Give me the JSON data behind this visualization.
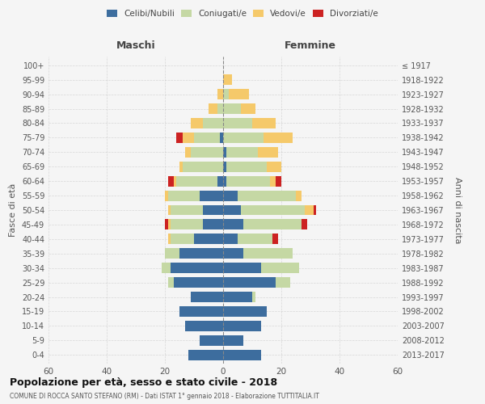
{
  "age_groups": [
    "0-4",
    "5-9",
    "10-14",
    "15-19",
    "20-24",
    "25-29",
    "30-34",
    "35-39",
    "40-44",
    "45-49",
    "50-54",
    "55-59",
    "60-64",
    "65-69",
    "70-74",
    "75-79",
    "80-84",
    "85-89",
    "90-94",
    "95-99",
    "100+"
  ],
  "birth_years": [
    "2013-2017",
    "2008-2012",
    "2003-2007",
    "1998-2002",
    "1993-1997",
    "1988-1992",
    "1983-1987",
    "1978-1982",
    "1973-1977",
    "1968-1972",
    "1963-1967",
    "1958-1962",
    "1953-1957",
    "1948-1952",
    "1943-1947",
    "1938-1942",
    "1933-1937",
    "1928-1932",
    "1923-1927",
    "1918-1922",
    "≤ 1917"
  ],
  "maschi": {
    "celibi": [
      12,
      8,
      13,
      15,
      11,
      17,
      18,
      15,
      10,
      7,
      7,
      8,
      2,
      0,
      0,
      1,
      0,
      0,
      0,
      0,
      0
    ],
    "coniugati": [
      0,
      0,
      0,
      0,
      0,
      2,
      3,
      5,
      8,
      11,
      11,
      11,
      14,
      14,
      11,
      9,
      7,
      2,
      0,
      0,
      0
    ],
    "vedovi": [
      0,
      0,
      0,
      0,
      0,
      0,
      0,
      0,
      1,
      1,
      1,
      1,
      1,
      1,
      2,
      4,
      4,
      3,
      2,
      0,
      0
    ],
    "divorziati": [
      0,
      0,
      0,
      0,
      0,
      0,
      0,
      0,
      0,
      1,
      0,
      0,
      2,
      0,
      0,
      2,
      0,
      0,
      0,
      0,
      0
    ]
  },
  "femmine": {
    "nubili": [
      13,
      7,
      13,
      15,
      10,
      18,
      13,
      7,
      5,
      7,
      6,
      5,
      1,
      1,
      1,
      0,
      0,
      0,
      0,
      0,
      0
    ],
    "coniugate": [
      0,
      0,
      0,
      0,
      1,
      5,
      13,
      17,
      12,
      20,
      22,
      20,
      15,
      14,
      11,
      14,
      10,
      6,
      2,
      0,
      0
    ],
    "vedove": [
      0,
      0,
      0,
      0,
      0,
      0,
      0,
      0,
      0,
      0,
      3,
      2,
      2,
      5,
      7,
      10,
      8,
      5,
      7,
      3,
      0
    ],
    "divorziate": [
      0,
      0,
      0,
      0,
      0,
      0,
      0,
      0,
      2,
      2,
      1,
      0,
      2,
      0,
      0,
      0,
      0,
      0,
      0,
      0,
      0
    ]
  },
  "colors": {
    "celibi": "#3d6d9e",
    "coniugati": "#c5d8a4",
    "vedovi": "#f5c96a",
    "divorziati": "#cc2222"
  },
  "xlim": 60,
  "title": "Popolazione per età, sesso e stato civile - 2018",
  "subtitle": "COMUNE DI ROCCA SANTO STEFANO (RM) - Dati ISTAT 1° gennaio 2018 - Elaborazione TUTTITALIA.IT",
  "ylabel_left": "Fasce di età",
  "ylabel_right": "Anni di nascita",
  "xlabel_maschi": "Maschi",
  "xlabel_femmine": "Femmine",
  "bg_color": "#f5f5f5",
  "bar_height": 0.72
}
